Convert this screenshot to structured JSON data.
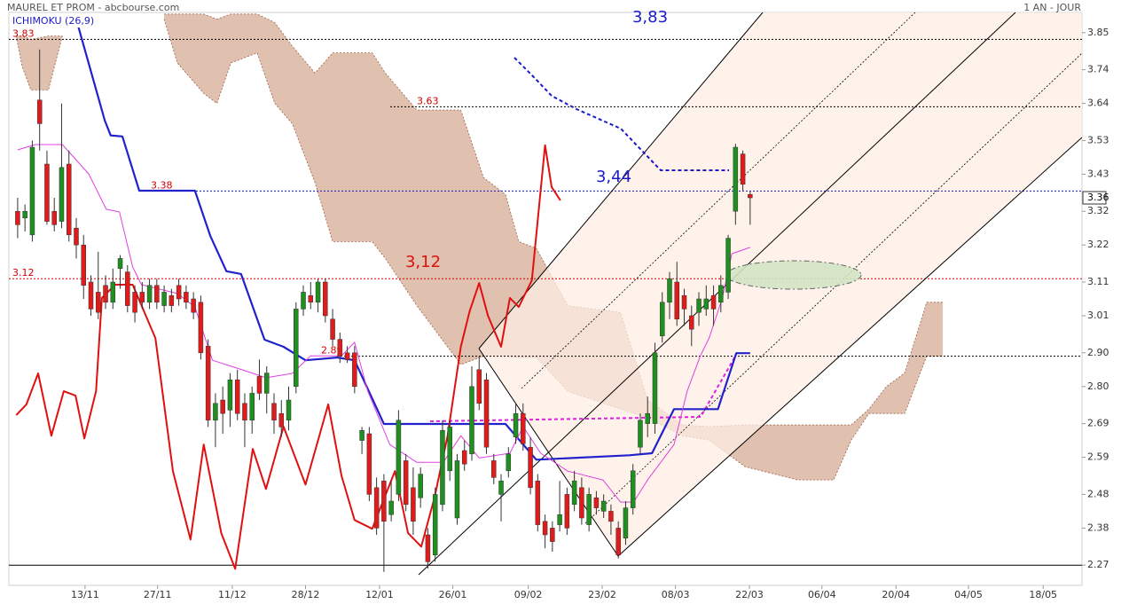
{
  "header": {
    "title": "MAUREL ET PROM - abcbourse.com",
    "indicator": "ICHIMOKU (26,9)",
    "period": "1 AN - JOUR"
  },
  "chart_data": {
    "type": "candlestick",
    "xlim": [
      -1.2,
      145.3
    ],
    "ylim": [
      2.21,
      3.91
    ],
    "xticks": [
      {
        "value": 9.2,
        "label": "13/11"
      },
      {
        "value": 19.1,
        "label": "27/11"
      },
      {
        "value": 29.3,
        "label": "11/12"
      },
      {
        "value": 39.3,
        "label": "28/12"
      },
      {
        "value": 49.4,
        "label": "12/01"
      },
      {
        "value": 59.4,
        "label": "26/01"
      },
      {
        "value": 69.7,
        "label": "09/02"
      },
      {
        "value": 79.8,
        "label": "23/02"
      },
      {
        "value": 89.8,
        "label": "08/03"
      },
      {
        "value": 99.9,
        "label": "22/03"
      },
      {
        "value": 109.8,
        "label": "06/04"
      },
      {
        "value": 119.9,
        "label": "20/04"
      },
      {
        "value": 129.8,
        "label": "04/05"
      },
      {
        "value": 140,
        "label": "18/05"
      }
    ],
    "yticks": [
      2.27,
      2.38,
      2.48,
      2.59,
      2.69,
      {
        "value": 2.8,
        "label": "2.80"
      },
      {
        "value": 2.9,
        "label": "2.90"
      },
      3.01,
      3.11,
      3.22,
      3.32,
      3.43,
      3.53,
      3.64,
      3.74,
      3.85
    ],
    "last_price": 3.36,
    "up_color": "#1f8f1f",
    "down_color": "#e01b1b",
    "open": [
      3.32,
      3.3,
      3.25,
      3.65,
      3.46,
      3.32,
      3.29,
      3.46,
      3.27,
      3.22,
      3.11,
      3.08,
      3.1,
      3.05,
      3.15,
      3.14,
      3.08,
      3.08,
      3.05,
      3.1,
      3.04,
      3.07,
      3.1,
      3.08,
      3.06,
      3.05,
      2.92,
      2.7,
      2.76,
      2.73,
      2.82,
      2.75,
      2.7,
      2.83,
      2.78,
      2.75,
      2.72,
      2.7,
      2.8,
      3.03,
      3.07,
      3.05,
      3.11,
      3.0,
      2.94,
      2.9,
      2.9,
      2.64,
      2.66,
      2.5,
      2.52,
      2.42,
      2.48,
      2.58,
      2.5,
      2.47,
      2.36,
      2.3,
      2.45,
      2.55,
      2.41,
      2.61,
      2.6,
      2.85,
      2.82,
      2.58,
      2.48,
      2.55,
      2.65,
      2.72,
      2.62,
      2.52,
      2.4,
      2.38,
      2.39,
      2.48,
      2.45,
      2.5,
      2.39,
      2.47,
      2.43,
      2.43,
      2.38,
      2.35,
      2.44,
      2.62,
      2.69,
      2.69,
      2.95,
      3.05,
      3.11,
      3.07,
      3.01,
      3.02,
      3.03,
      3.07,
      3.05,
      3.08,
      3.32,
      3.49,
      3.37
    ],
    "high": [
      3.36,
      3.34,
      3.53,
      3.8,
      3.5,
      3.36,
      3.64,
      3.5,
      3.3,
      3.25,
      3.13,
      3.2,
      3.13,
      3.15,
      3.19,
      3.16,
      3.1,
      3.11,
      3.12,
      3.12,
      3.1,
      3.09,
      3.12,
      3.1,
      3.08,
      3.07,
      2.94,
      2.78,
      2.8,
      2.84,
      2.85,
      2.78,
      2.8,
      2.88,
      2.86,
      2.78,
      2.76,
      2.8,
      3.05,
      3.1,
      3.11,
      3.12,
      3.12,
      3.03,
      2.96,
      2.92,
      2.92,
      2.68,
      2.68,
      2.53,
      2.54,
      2.52,
      2.73,
      2.6,
      2.56,
      2.56,
      2.38,
      2.5,
      2.7,
      2.7,
      2.6,
      2.64,
      2.86,
      2.89,
      2.84,
      2.6,
      2.54,
      2.62,
      2.75,
      2.75,
      2.65,
      2.54,
      2.42,
      2.4,
      2.52,
      2.5,
      2.55,
      2.53,
      2.5,
      2.49,
      2.48,
      2.45,
      2.4,
      2.46,
      2.57,
      2.72,
      2.77,
      2.93,
      3.08,
      3.14,
      3.17,
      3.09,
      3.04,
      3.08,
      3.1,
      3.1,
      3.13,
      3.25,
      3.52,
      3.5,
      3.38
    ],
    "low": [
      3.24,
      3.26,
      3.23,
      3.5,
      3.28,
      3.26,
      3.27,
      3.23,
      3.18,
      3.06,
      3.01,
      3.0,
      3.03,
      3.03,
      3.09,
      3.02,
      2.99,
      3.03,
      3.03,
      3.03,
      3.02,
      3.02,
      3.04,
      3.03,
      3.0,
      2.88,
      2.68,
      2.62,
      2.66,
      2.68,
      2.7,
      2.62,
      2.66,
      2.76,
      2.72,
      2.66,
      2.65,
      2.67,
      2.78,
      3.01,
      3.03,
      3.02,
      2.99,
      2.92,
      2.87,
      2.87,
      2.78,
      2.6,
      2.46,
      2.36,
      2.25,
      2.4,
      2.46,
      2.43,
      2.36,
      2.44,
      2.26,
      2.28,
      2.43,
      2.52,
      2.39,
      2.55,
      2.58,
      2.73,
      2.6,
      2.51,
      2.4,
      2.53,
      2.63,
      2.61,
      2.48,
      2.37,
      2.32,
      2.31,
      2.37,
      2.36,
      2.43,
      2.39,
      2.37,
      2.42,
      2.41,
      2.36,
      2.29,
      2.33,
      2.42,
      2.6,
      2.65,
      2.66,
      2.93,
      3.0,
      2.98,
      2.98,
      2.92,
      2.98,
      3.01,
      2.98,
      3.02,
      3.06,
      3.28,
      3.38,
      3.28
    ],
    "close": [
      3.28,
      3.32,
      3.51,
      3.58,
      3.29,
      3.28,
      3.45,
      3.25,
      3.22,
      3.1,
      3.03,
      3.02,
      3.05,
      3.11,
      3.18,
      3.04,
      3.02,
      3.05,
      3.1,
      3.05,
      3.08,
      3.04,
      3.06,
      3.05,
      3.02,
      2.9,
      2.7,
      2.75,
      2.72,
      2.82,
      2.72,
      2.7,
      2.78,
      2.78,
      2.84,
      2.7,
      2.68,
      2.76,
      3.03,
      3.08,
      3.05,
      3.11,
      3.01,
      2.94,
      2.89,
      2.88,
      2.8,
      2.67,
      2.48,
      2.38,
      2.4,
      2.46,
      2.7,
      2.45,
      2.4,
      2.54,
      2.28,
      2.48,
      2.67,
      2.68,
      2.58,
      2.57,
      2.8,
      2.75,
      2.62,
      2.53,
      2.52,
      2.6,
      2.72,
      2.63,
      2.5,
      2.39,
      2.36,
      2.34,
      2.42,
      2.38,
      2.52,
      2.41,
      2.48,
      2.44,
      2.46,
      2.4,
      2.3,
      2.44,
      2.55,
      2.7,
      2.72,
      2.9,
      3.05,
      3.12,
      3.0,
      3.03,
      2.97,
      3.06,
      3.06,
      3.03,
      3.1,
      3.24,
      3.51,
      3.4,
      3.36
    ],
    "lines": [
      {
        "color": "#2222cc",
        "width": 2.2,
        "x": [
          7.9,
          11.9,
          12.7,
          14.3,
          16.6,
          24.2,
          26.3,
          28.5,
          30.5,
          33.7,
          36.3,
          39.3,
          43.6,
          46,
          50,
          66.6,
          70.8,
          83.5,
          86.6,
          89.6,
          95.6,
          98.1,
          100
        ],
        "values": [
          3.897,
          3.589,
          3.545,
          3.542,
          3.381,
          3.381,
          3.247,
          3.142,
          3.134,
          2.939,
          2.918,
          2.878,
          2.886,
          2.878,
          2.689,
          2.689,
          2.583,
          2.596,
          2.602,
          2.733,
          2.733,
          2.899,
          2.899
        ]
      },
      {
        "color": "#e040e0",
        "width": 1,
        "x": [
          0,
          2.4,
          6.1,
          9.7,
          12.1,
          13.9,
          15.7,
          16.9,
          21.8,
          24.2,
          26.6,
          30.3,
          33.9,
          37.5,
          40,
          44.2,
          46,
          47.8,
          50.8,
          54.5,
          58.1,
          60.5,
          63,
          67.2,
          69,
          71.4,
          75.1,
          79.9,
          82.3,
          84.1,
          86,
          89.6,
          91.4,
          93.2,
          94.4,
          96.2,
          97.5,
          100
        ],
        "values": [
          3.502,
          3.518,
          3.518,
          3.431,
          3.326,
          3.318,
          3.155,
          3.102,
          3.076,
          3.036,
          2.878,
          2.852,
          2.826,
          2.839,
          2.891,
          2.891,
          2.931,
          2.786,
          2.628,
          2.575,
          2.575,
          2.654,
          2.588,
          2.602,
          2.681,
          2.602,
          2.549,
          2.523,
          2.457,
          2.457,
          2.523,
          2.628,
          2.786,
          2.891,
          2.944,
          3.063,
          3.194,
          3.213
        ]
      },
      {
        "color": "#e01010",
        "width": 2,
        "x": [
          -0.2,
          1.2,
          2.8,
          4.6,
          6.3,
          7.9,
          9.1,
          10.7,
          11.5,
          13.3,
          15.7,
          18.8,
          21.2,
          23.6,
          25.4,
          27.8,
          29.7,
          32.1,
          33.9,
          36.3,
          39.3,
          42.4,
          44.2,
          46,
          48.4,
          51.5,
          53.3,
          55.1,
          56.9,
          58.7,
          60.5,
          61.7,
          63,
          64.2,
          66,
          67.2,
          68.4,
          70.2,
          72,
          72.9,
          74.1
        ],
        "values": [
          2.715,
          2.747,
          2.839,
          2.654,
          2.786,
          2.773,
          2.646,
          2.786,
          3.063,
          3.102,
          3.102,
          2.944,
          2.549,
          2.346,
          2.628,
          2.365,
          2.259,
          2.615,
          2.496,
          2.681,
          2.509,
          2.747,
          2.536,
          2.404,
          2.378,
          2.549,
          2.365,
          2.325,
          2.47,
          2.654,
          2.918,
          3.023,
          3.107,
          3.01,
          2.918,
          3.063,
          3.036,
          3.115,
          3.516,
          3.392,
          3.352
        ]
      }
    ],
    "cloud": {
      "color": "#ddb9a5",
      "edge": "#9a6047",
      "x": [
        -0.2,
        0.6,
        1.8,
        4.2,
        6.1,
        13,
        20,
        21.8,
        25.4,
        27.2,
        29.1,
        32.7,
        35.1,
        37.5,
        40.6,
        43,
        46,
        48.4,
        50.2,
        54.5,
        60.5,
        63.6,
        66.6,
        68.4,
        70.8,
        75.1,
        82.3,
        86,
        90.8,
        94.4,
        99.3,
        106.5,
        111.4,
        113.8,
        116.2,
        118.6,
        121.1,
        124.1,
        126.3
      ],
      "upper": [
        3.84,
        3.84,
        3.83,
        3.84,
        3.84,
        null,
        3.905,
        3.905,
        3.905,
        3.89,
        3.905,
        3.905,
        3.88,
        3.81,
        3.73,
        3.79,
        3.79,
        3.79,
        3.73,
        3.62,
        3.62,
        3.42,
        3.37,
        3.23,
        3.21,
        3.04,
        3.02,
        2.76,
        2.686,
        2.681,
        2.686,
        2.686,
        2.686,
        2.686,
        2.733,
        2.8,
        2.84,
        3.05,
        3.05
      ],
      "lower": [
        3.84,
        3.75,
        3.68,
        3.68,
        3.84,
        null,
        3.89,
        3.76,
        3.67,
        3.64,
        3.76,
        3.79,
        3.64,
        3.58,
        3.405,
        3.23,
        3.23,
        3.23,
        3.18,
        3.04,
        2.865,
        2.89,
        2.89,
        2.886,
        2.886,
        2.786,
        2.733,
        2.707,
        2.654,
        2.641,
        2.562,
        2.523,
        2.523,
        2.641,
        2.72,
        2.72,
        2.72,
        2.89,
        2.89
      ]
    },
    "levels": [
      3.83,
      3.63,
      3.38,
      3.12,
      2.89,
      2.27
    ],
    "annotations": [
      "3,83",
      "3,44",
      "3,12"
    ]
  }
}
